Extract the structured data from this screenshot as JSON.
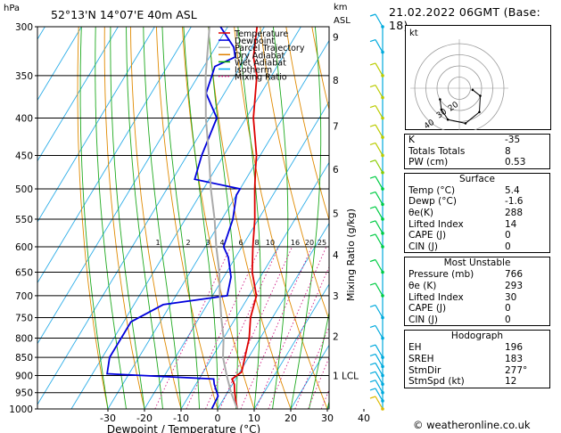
{
  "header": {
    "location": "52°13'N  14°07'E  40m  ASL",
    "pressure_unit": "hPa",
    "height_unit_1": "km",
    "height_unit_2": "ASL",
    "date": "21.02.2022  06GMT  (Base: 18)"
  },
  "credit": "© weatheronline.co.uk",
  "chart_data": {
    "type": "skew-t log-p diagram",
    "xlabel": "Dewpoint / Temperature (°C)",
    "ylabel": "Mixing Ratio (g/kg)",
    "x_ticks": [
      "-30",
      "-20",
      "-10",
      "0",
      "10",
      "20",
      "30",
      "40"
    ],
    "pressure_levels": [
      300,
      350,
      400,
      450,
      500,
      550,
      600,
      650,
      700,
      750,
      800,
      850,
      900,
      950,
      1000
    ],
    "km_ticks": [
      {
        "p": 310,
        "label": "9"
      },
      {
        "p": 355,
        "label": "8"
      },
      {
        "p": 410,
        "label": "7"
      },
      {
        "p": 470,
        "label": "6"
      },
      {
        "p": 540,
        "label": "5"
      },
      {
        "p": 615,
        "label": "4"
      },
      {
        "p": 700,
        "label": "3"
      },
      {
        "p": 795,
        "label": "2"
      },
      {
        "p": 900,
        "label": "1"
      }
    ],
    "lcl_label": "LCL",
    "lcl_p": 900,
    "mixing_ratio_labels": [
      "1",
      "2",
      "3",
      "4",
      "6",
      "8",
      "10",
      "16",
      "20",
      "25"
    ],
    "legend": [
      {
        "name": "Temperature",
        "color": "#dd0000"
      },
      {
        "name": "Dewpoint",
        "color": "#0000dd"
      },
      {
        "name": "Parcel Trajectory",
        "color": "#aaaaaa"
      },
      {
        "name": "Dry Adiabat",
        "color": "#e08000"
      },
      {
        "name": "Wet Adiabat",
        "color": "#00aa00"
      },
      {
        "name": "Isotherm",
        "color": "#00aaee"
      },
      {
        "name": "Mixing Ratio",
        "color": "#cc0077"
      }
    ],
    "series": [
      {
        "name": "Temperature",
        "color": "#dd0000",
        "points": [
          {
            "p": 1000,
            "t": 5.4
          },
          {
            "p": 980,
            "t": 4
          },
          {
            "p": 950,
            "t": 2
          },
          {
            "p": 925,
            "t": 0.5
          },
          {
            "p": 910,
            "t": -1
          },
          {
            "p": 890,
            "t": 0.5
          },
          {
            "p": 850,
            "t": -1
          },
          {
            "p": 800,
            "t": -3
          },
          {
            "p": 750,
            "t": -6
          },
          {
            "p": 700,
            "t": -8
          },
          {
            "p": 650,
            "t": -13
          },
          {
            "p": 600,
            "t": -17
          },
          {
            "p": 550,
            "t": -21
          },
          {
            "p": 500,
            "t": -26
          },
          {
            "p": 470,
            "t": -29
          },
          {
            "p": 450,
            "t": -31
          },
          {
            "p": 400,
            "t": -38
          },
          {
            "p": 350,
            "t": -44
          },
          {
            "p": 330,
            "t": -48
          },
          {
            "p": 300,
            "t": -52
          }
        ]
      },
      {
        "name": "Dewpoint",
        "color": "#0000dd",
        "points": [
          {
            "p": 1000,
            "t": -1.6
          },
          {
            "p": 960,
            "t": -2
          },
          {
            "p": 925,
            "t": -5
          },
          {
            "p": 910,
            "t": -6
          },
          {
            "p": 895,
            "t": -36
          },
          {
            "p": 850,
            "t": -38
          },
          {
            "p": 800,
            "t": -38
          },
          {
            "p": 760,
            "t": -38
          },
          {
            "p": 720,
            "t": -32
          },
          {
            "p": 700,
            "t": -16
          },
          {
            "p": 660,
            "t": -18
          },
          {
            "p": 620,
            "t": -22
          },
          {
            "p": 600,
            "t": -25
          },
          {
            "p": 550,
            "t": -27
          },
          {
            "p": 510,
            "t": -30
          },
          {
            "p": 500,
            "t": -30
          },
          {
            "p": 485,
            "t": -44
          },
          {
            "p": 450,
            "t": -46
          },
          {
            "p": 400,
            "t": -48
          },
          {
            "p": 370,
            "t": -55
          },
          {
            "p": 340,
            "t": -57
          },
          {
            "p": 330,
            "t": -53
          },
          {
            "p": 320,
            "t": -55
          },
          {
            "p": 300,
            "t": -62
          }
        ]
      },
      {
        "name": "Parcel Trajectory",
        "color": "#aaaaaa",
        "points": [
          {
            "p": 1000,
            "t": 5.4
          },
          {
            "p": 950,
            "t": 1
          },
          {
            "p": 900,
            "t": -3
          },
          {
            "p": 850,
            "t": -7
          },
          {
            "p": 800,
            "t": -10
          },
          {
            "p": 750,
            "t": -14
          },
          {
            "p": 700,
            "t": -18
          },
          {
            "p": 650,
            "t": -22
          },
          {
            "p": 600,
            "t": -27
          },
          {
            "p": 550,
            "t": -32
          },
          {
            "p": 500,
            "t": -38
          },
          {
            "p": 450,
            "t": -44
          },
          {
            "p": 400,
            "t": -51
          },
          {
            "p": 350,
            "t": -58
          },
          {
            "p": 300,
            "t": -65
          }
        ]
      }
    ],
    "hodograph": {
      "label": "kt",
      "ring_labels": [
        "20",
        "30",
        "40"
      ],
      "winds": [
        {
          "dir": 277,
          "spd": 12
        },
        {
          "dir": 290,
          "spd": 20
        },
        {
          "dir": 320,
          "spd": 28
        },
        {
          "dir": 350,
          "spd": 32
        },
        {
          "dir": 20,
          "spd": 30
        },
        {
          "dir": 40,
          "spd": 25
        },
        {
          "dir": 60,
          "spd": 20
        }
      ]
    }
  },
  "indices": {
    "top": [
      {
        "label": "K",
        "value": "-35"
      },
      {
        "label": "Totals Totals",
        "value": "8"
      },
      {
        "label": "PW (cm)",
        "value": "0.53"
      }
    ],
    "surface_title": "Surface",
    "surface": [
      {
        "label": "Temp (°C)",
        "value": "5.4"
      },
      {
        "label": "Dewp (°C)",
        "value": "-1.6"
      },
      {
        "label": "θe(K)",
        "value": "288"
      },
      {
        "label": "Lifted Index",
        "value": "14"
      },
      {
        "label": "CAPE (J)",
        "value": "0"
      },
      {
        "label": "CIN (J)",
        "value": "0"
      }
    ],
    "unstable_title": "Most Unstable",
    "unstable": [
      {
        "label": "Pressure (mb)",
        "value": "766"
      },
      {
        "label": "θe (K)",
        "value": "293"
      },
      {
        "label": "Lifted Index",
        "value": "30"
      },
      {
        "label": "CAPE (J)",
        "value": "0"
      },
      {
        "label": "CIN (J)",
        "value": "0"
      }
    ],
    "hodo_title": "Hodograph",
    "hodograph": [
      {
        "label": "EH",
        "value": "196"
      },
      {
        "label": "SREH",
        "value": "183"
      },
      {
        "label": "StmDir",
        "value": "277°"
      },
      {
        "label": "StmSpd (kt)",
        "value": "12"
      }
    ]
  }
}
